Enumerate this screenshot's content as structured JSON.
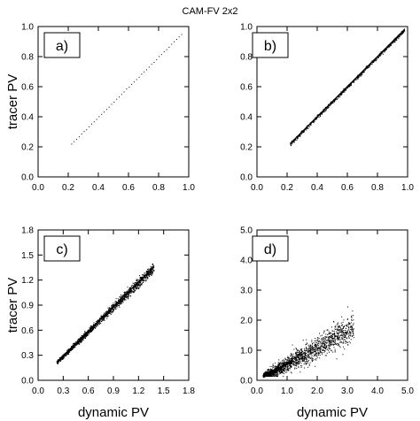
{
  "figure": {
    "title": "CAM-FV 2x2"
  },
  "chart_data": [
    {
      "type": "scatter",
      "panel_label": "a)",
      "xlabel": "",
      "ylabel": "tracer PV",
      "xlim": [
        0,
        1.0
      ],
      "ylim": [
        0,
        1.0
      ],
      "xticks": [
        "0.0",
        "0.2",
        "0.4",
        "0.6",
        "0.8",
        "1.0"
      ],
      "yticks": [
        "0.0",
        "0.2",
        "0.4",
        "0.6",
        "0.8",
        "1.0"
      ],
      "x_range": [
        0.22,
        0.95
      ],
      "slope": 1.0,
      "spread": 0.003,
      "n_points": 45,
      "sample_points": [
        [
          0.22,
          0.22
        ],
        [
          0.4,
          0.4
        ],
        [
          0.6,
          0.6
        ],
        [
          0.8,
          0.8
        ],
        [
          0.95,
          0.95
        ]
      ]
    },
    {
      "type": "scatter",
      "panel_label": "b)",
      "xlabel": "",
      "ylabel": "",
      "xlim": [
        0,
        1.0
      ],
      "ylim": [
        0,
        1.0
      ],
      "xticks": [
        "0.0",
        "0.2",
        "0.4",
        "0.6",
        "0.8",
        "1.0"
      ],
      "yticks": [
        "0.0",
        "0.2",
        "0.4",
        "0.6",
        "0.8",
        "1.0"
      ],
      "x_range": [
        0.22,
        0.98
      ],
      "slope": 1.0,
      "spread": 0.012,
      "n_points": 700,
      "sample_points": [
        [
          0.22,
          0.22
        ],
        [
          0.5,
          0.5
        ],
        [
          0.75,
          0.75
        ],
        [
          0.98,
          0.98
        ]
      ]
    },
    {
      "type": "scatter",
      "panel_label": "c)",
      "xlabel": "dynamic PV",
      "ylabel": "tracer PV",
      "xlim": [
        0,
        1.8
      ],
      "ylim": [
        0,
        1.8
      ],
      "xticks": [
        "0.0",
        "0.3",
        "0.6",
        "0.9",
        "1.2",
        "1.5",
        "1.8"
      ],
      "yticks": [
        "0.0",
        "0.3",
        "0.6",
        "0.9",
        "1.2",
        "1.5",
        "1.8"
      ],
      "x_range": [
        0.22,
        1.38
      ],
      "slope": 0.98,
      "spread": 0.04,
      "n_points": 1500,
      "sample_points": [
        [
          0.22,
          0.22
        ],
        [
          0.6,
          0.58
        ],
        [
          1.0,
          0.98
        ],
        [
          1.38,
          1.34
        ]
      ]
    },
    {
      "type": "scatter",
      "panel_label": "d)",
      "xlabel": "dynamic PV",
      "ylabel": "",
      "xlim": [
        0,
        5.0
      ],
      "ylim": [
        0,
        5.0
      ],
      "xticks": [
        "0.0",
        "1.0",
        "2.0",
        "3.0",
        "4.0",
        "5.0"
      ],
      "yticks": [
        "0.0",
        "1.0",
        "2.0",
        "3.0",
        "4.0",
        "5.0"
      ],
      "x_range": [
        0.2,
        3.2
      ],
      "slope": 0.55,
      "spread": 0.3,
      "n_points": 2000,
      "sample_points": [
        [
          0.3,
          0.3
        ],
        [
          0.8,
          0.6
        ],
        [
          1.5,
          0.9
        ],
        [
          2.0,
          1.5
        ],
        [
          2.8,
          2.1
        ]
      ]
    }
  ]
}
